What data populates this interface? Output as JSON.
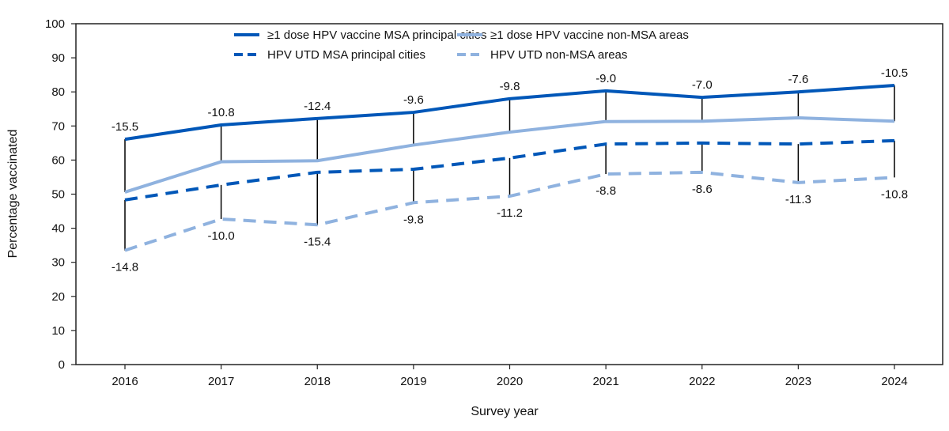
{
  "chart_data": {
    "type": "line",
    "xlabel": "Survey year",
    "ylabel": "Percentage vaccinated",
    "ylim": [
      0,
      100
    ],
    "yticks": [
      0,
      10,
      20,
      30,
      40,
      50,
      60,
      70,
      80,
      90,
      100
    ],
    "categories": [
      "2016",
      "2017",
      "2018",
      "2019",
      "2020",
      "2021",
      "2022",
      "2023",
      "2024"
    ],
    "grid": false,
    "legend_placement": "top",
    "series": [
      {
        "name": "≥1 dose HPV vaccine MSA principal cities",
        "color": "#0057b8",
        "dash": false,
        "values": [
          66.1,
          70.3,
          72.2,
          74.0,
          78.0,
          80.3,
          78.4,
          80.0,
          81.9
        ]
      },
      {
        "name": "≥1 dose HPV vaccine non-MSA areas",
        "color": "#8fb2df",
        "dash": false,
        "values": [
          50.6,
          59.5,
          59.8,
          64.4,
          68.2,
          71.3,
          71.4,
          72.4,
          71.4
        ]
      },
      {
        "name": "HPV UTD MSA principal cities",
        "color": "#0057b8",
        "dash": true,
        "values": [
          48.3,
          52.7,
          56.4,
          57.3,
          60.6,
          64.7,
          65.0,
          64.7,
          65.7
        ]
      },
      {
        "name": "HPV UTD non-MSA areas",
        "color": "#8fb2df",
        "dash": true,
        "values": [
          33.5,
          42.7,
          41.0,
          47.5,
          49.4,
          55.9,
          56.4,
          53.4,
          54.9
        ]
      }
    ],
    "annotations": {
      "dose_difference": [
        "-15.5",
        "-10.8",
        "-12.4",
        "-9.6",
        "-9.8",
        "-9.0",
        "-7.0",
        "-7.6",
        "-10.5"
      ],
      "utd_difference": [
        "-14.8",
        "-10.0",
        "-15.4",
        "-9.8",
        "-11.2",
        "-8.8",
        "-8.6",
        "-11.3",
        "-10.8"
      ]
    }
  }
}
